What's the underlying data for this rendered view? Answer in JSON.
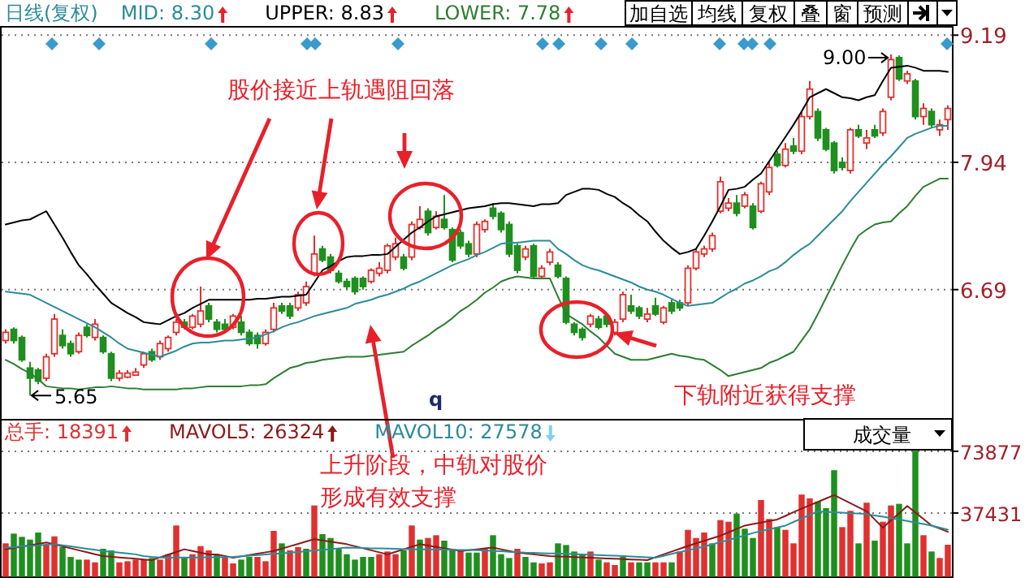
{
  "chart_data": [
    {
      "type": "candlestick",
      "title": "日线(复权)",
      "categories": [
        null,
        null,
        null,
        null,
        null,
        null,
        null,
        null,
        null,
        null,
        null,
        null,
        null,
        null,
        null,
        null,
        null,
        null,
        null,
        null,
        null,
        null,
        null,
        null,
        null,
        null,
        null,
        null,
        null,
        null,
        null,
        null,
        null,
        null,
        null,
        null,
        null,
        null,
        null,
        null,
        null,
        null,
        null,
        null,
        null,
        null,
        null,
        null,
        null,
        null,
        null,
        null,
        null,
        null,
        null,
        null,
        null,
        null,
        null,
        null,
        null,
        null,
        null,
        null,
        null,
        null,
        null,
        null,
        null,
        null,
        null,
        null,
        null,
        null,
        null,
        null,
        null,
        null,
        null,
        null,
        null,
        null,
        null,
        null,
        null,
        null,
        null,
        null,
        null,
        null,
        null,
        null,
        null,
        null,
        null,
        null,
        null,
        null,
        null,
        null,
        null,
        null,
        null,
        null,
        null,
        null,
        null,
        null,
        null,
        null,
        null,
        null,
        null,
        null,
        null,
        null,
        null
      ],
      "ohlc": [
        [
          6.19,
          6.3,
          6.16,
          6.27
        ],
        [
          6.3,
          6.32,
          6.16,
          6.19
        ],
        [
          6.22,
          6.24,
          5.98,
          6.0
        ],
        [
          5.92,
          5.98,
          5.65,
          5.82
        ],
        [
          5.9,
          5.92,
          5.76,
          5.79
        ],
        [
          5.82,
          6.06,
          5.79,
          6.03
        ],
        [
          6.06,
          6.45,
          6.03,
          6.4
        ],
        [
          6.24,
          6.3,
          6.11,
          6.14
        ],
        [
          6.16,
          6.19,
          6.03,
          6.06
        ],
        [
          6.08,
          6.27,
          6.06,
          6.24
        ],
        [
          6.32,
          6.35,
          6.22,
          6.24
        ],
        [
          6.22,
          6.4,
          6.19,
          6.35
        ],
        [
          6.22,
          6.24,
          6.06,
          6.08
        ],
        [
          6.06,
          6.08,
          5.79,
          5.82
        ],
        [
          5.82,
          5.9,
          5.79,
          5.87
        ],
        [
          5.83,
          5.9,
          5.82,
          5.87
        ],
        [
          5.85,
          5.92,
          5.84,
          5.88
        ],
        [
          5.95,
          6.08,
          5.92,
          6.06
        ],
        [
          6.08,
          6.11,
          5.98,
          6.0
        ],
        [
          6.03,
          6.19,
          6.0,
          6.16
        ],
        [
          6.11,
          6.24,
          6.08,
          6.22
        ],
        [
          6.27,
          6.4,
          6.24,
          6.37
        ],
        [
          6.37,
          6.4,
          6.3,
          6.32
        ],
        [
          6.32,
          6.45,
          6.3,
          6.43
        ],
        [
          6.35,
          6.72,
          6.32,
          6.48
        ],
        [
          6.53,
          6.56,
          6.37,
          6.4
        ],
        [
          6.37,
          6.4,
          6.27,
          6.3
        ],
        [
          6.35,
          6.4,
          6.27,
          6.3
        ],
        [
          6.32,
          6.45,
          6.3,
          6.43
        ],
        [
          6.37,
          6.43,
          6.24,
          6.27
        ],
        [
          6.27,
          6.3,
          6.14,
          6.16
        ],
        [
          6.24,
          6.27,
          6.11,
          6.16
        ],
        [
          6.16,
          6.3,
          6.14,
          6.27
        ],
        [
          6.3,
          6.56,
          6.27,
          6.51
        ],
        [
          6.53,
          6.56,
          6.45,
          6.48
        ],
        [
          6.53,
          6.56,
          6.4,
          6.43
        ],
        [
          6.51,
          6.67,
          6.48,
          6.64
        ],
        [
          6.56,
          6.77,
          6.53,
          6.72
        ],
        [
          6.85,
          7.22,
          6.82,
          7.04
        ],
        [
          7.09,
          7.12,
          6.96,
          6.98
        ],
        [
          7.01,
          7.04,
          6.85,
          6.88
        ],
        [
          6.85,
          6.88,
          6.75,
          6.77
        ],
        [
          6.77,
          6.8,
          6.69,
          6.72
        ],
        [
          6.8,
          6.82,
          6.64,
          6.67
        ],
        [
          6.8,
          6.82,
          6.69,
          6.72
        ],
        [
          6.77,
          6.9,
          6.75,
          6.88
        ],
        [
          6.85,
          6.96,
          6.82,
          6.9
        ],
        [
          6.88,
          7.14,
          6.85,
          7.12
        ],
        [
          7.01,
          7.2,
          6.98,
          7.14
        ],
        [
          7.01,
          7.04,
          6.88,
          6.9
        ],
        [
          7.01,
          7.36,
          6.98,
          7.33
        ],
        [
          7.3,
          7.51,
          7.28,
          7.38
        ],
        [
          7.46,
          7.49,
          7.22,
          7.25
        ],
        [
          7.3,
          7.46,
          7.28,
          7.41
        ],
        [
          7.38,
          7.62,
          7.28,
          7.3
        ],
        [
          7.28,
          7.3,
          6.96,
          6.98
        ],
        [
          7.25,
          7.28,
          7.09,
          7.12
        ],
        [
          7.14,
          7.17,
          7.01,
          7.04
        ],
        [
          7.04,
          7.36,
          7.01,
          7.33
        ],
        [
          7.28,
          7.38,
          7.25,
          7.36
        ],
        [
          7.49,
          7.54,
          7.38,
          7.41
        ],
        [
          7.44,
          7.46,
          7.25,
          7.28
        ],
        [
          7.33,
          7.36,
          7.01,
          7.04
        ],
        [
          7.12,
          7.14,
          6.85,
          6.88
        ],
        [
          7.01,
          7.12,
          6.98,
          7.09
        ],
        [
          7.12,
          7.14,
          6.8,
          6.82
        ],
        [
          6.82,
          6.93,
          6.8,
          6.9
        ],
        [
          6.96,
          7.09,
          6.93,
          7.06
        ],
        [
          6.93,
          6.96,
          6.8,
          6.82
        ],
        [
          6.8,
          6.82,
          6.35,
          6.37
        ],
        [
          6.35,
          6.37,
          6.24,
          6.27
        ],
        [
          6.3,
          6.32,
          6.19,
          6.22
        ],
        [
          6.35,
          6.45,
          6.32,
          6.43
        ],
        [
          6.4,
          6.43,
          6.3,
          6.32
        ],
        [
          6.43,
          6.45,
          6.32,
          6.35
        ],
        [
          6.27,
          6.4,
          6.24,
          6.37
        ],
        [
          6.4,
          6.67,
          6.37,
          6.64
        ],
        [
          6.53,
          6.64,
          6.45,
          6.48
        ],
        [
          6.51,
          6.53,
          6.4,
          6.43
        ],
        [
          6.4,
          6.51,
          6.37,
          6.45
        ],
        [
          6.53,
          6.61,
          6.43,
          6.45
        ],
        [
          6.37,
          6.53,
          6.35,
          6.51
        ],
        [
          6.56,
          6.59,
          6.45,
          6.48
        ],
        [
          6.56,
          6.59,
          6.48,
          6.51
        ],
        [
          6.56,
          6.93,
          6.53,
          6.9
        ],
        [
          6.9,
          7.09,
          6.88,
          7.06
        ],
        [
          7.04,
          7.12,
          7.01,
          7.09
        ],
        [
          7.09,
          7.25,
          7.06,
          7.22
        ],
        [
          7.46,
          7.8,
          7.44,
          7.75
        ],
        [
          7.49,
          7.59,
          7.46,
          7.54
        ],
        [
          7.54,
          7.62,
          7.41,
          7.44
        ],
        [
          7.51,
          7.65,
          7.49,
          7.62
        ],
        [
          7.51,
          7.54,
          7.28,
          7.3
        ],
        [
          7.46,
          7.75,
          7.44,
          7.73
        ],
        [
          7.65,
          7.94,
          7.62,
          7.89
        ],
        [
          8.02,
          8.05,
          7.89,
          7.91
        ],
        [
          7.91,
          8.13,
          7.89,
          8.07
        ],
        [
          8.1,
          8.18,
          8.02,
          8.05
        ],
        [
          8.05,
          8.44,
          8.02,
          8.39
        ],
        [
          8.39,
          8.74,
          8.36,
          8.66
        ],
        [
          8.44,
          8.47,
          8.15,
          8.18
        ],
        [
          8.26,
          8.28,
          8.05,
          8.07
        ],
        [
          8.13,
          8.15,
          7.83,
          7.86
        ],
        [
          7.94,
          7.99,
          7.86,
          7.89
        ],
        [
          7.86,
          8.28,
          7.83,
          8.26
        ],
        [
          8.26,
          8.31,
          8.18,
          8.2
        ],
        [
          8.13,
          8.26,
          8.07,
          8.18
        ],
        [
          8.26,
          8.31,
          8.18,
          8.2
        ],
        [
          8.23,
          8.47,
          8.2,
          8.44
        ],
        [
          8.58,
          9.0,
          8.55,
          8.95
        ],
        [
          8.97,
          8.99,
          8.74,
          8.76
        ],
        [
          8.74,
          8.84,
          8.71,
          8.81
        ],
        [
          8.74,
          8.76,
          8.36,
          8.39
        ],
        [
          8.39,
          8.52,
          8.31,
          8.47
        ],
        [
          8.44,
          8.47,
          8.28,
          8.31
        ],
        [
          8.26,
          8.36,
          8.2,
          8.31
        ],
        [
          8.36,
          8.5,
          8.26,
          8.47
        ]
      ],
      "series": [
        {
          "type": "line",
          "name": "MID: 8.30",
          "color": "#2b8c99",
          "values": [
            6.67,
            6.66,
            6.65,
            6.64,
            6.6,
            6.56,
            6.52,
            6.48,
            6.44,
            6.4,
            6.36,
            6.32,
            6.27,
            6.22,
            6.16,
            6.11,
            6.09,
            6.07,
            6.05,
            6.03,
            6.06,
            6.09,
            6.13,
            6.16,
            6.17,
            6.17,
            6.18,
            6.19,
            6.19,
            6.2,
            6.21,
            6.22,
            6.25,
            6.28,
            6.32,
            6.35,
            6.37,
            6.4,
            6.43,
            6.45,
            6.47,
            6.49,
            6.51,
            6.55,
            6.57,
            6.59,
            6.62,
            6.64,
            6.67,
            6.7,
            6.74,
            6.77,
            6.81,
            6.85,
            6.89,
            6.93,
            6.96,
            6.99,
            7.03,
            7.06,
            7.1,
            7.14,
            7.15,
            7.15,
            7.16,
            7.17,
            7.17,
            7.17,
            7.09,
            7.04,
            6.98,
            6.93,
            6.9,
            6.88,
            6.85,
            6.82,
            6.79,
            6.76,
            6.72,
            6.69,
            6.67,
            6.64,
            6.6,
            6.56,
            6.53,
            6.54,
            6.55,
            6.56,
            6.61,
            6.66,
            6.7,
            6.75,
            6.78,
            6.82,
            6.87,
            6.9,
            6.96,
            7.03,
            7.09,
            7.14,
            7.22,
            7.3,
            7.38,
            7.46,
            7.56,
            7.65,
            7.74,
            7.83,
            7.92,
            8.0,
            8.09,
            8.18,
            8.22,
            8.25,
            8.28,
            8.3,
            8.3
          ]
        },
        {
          "type": "line",
          "name": "UPPER: 8.83",
          "color": "#000000",
          "values": [
            7.33,
            7.35,
            7.37,
            7.38,
            7.42,
            7.46,
            7.33,
            7.2,
            7.06,
            6.93,
            6.84,
            6.74,
            6.65,
            6.56,
            6.51,
            6.46,
            6.42,
            6.37,
            6.36,
            6.35,
            6.39,
            6.43,
            6.46,
            6.51,
            6.55,
            6.59,
            6.59,
            6.59,
            6.59,
            6.59,
            6.59,
            6.6,
            6.6,
            6.61,
            6.62,
            6.62,
            6.63,
            6.64,
            6.76,
            6.88,
            6.92,
            6.97,
            7.01,
            7.02,
            7.02,
            7.03,
            7.03,
            7.04,
            7.11,
            7.18,
            7.25,
            7.3,
            7.36,
            7.41,
            7.43,
            7.45,
            7.47,
            7.49,
            7.5,
            7.51,
            7.53,
            7.54,
            7.54,
            7.53,
            7.52,
            7.51,
            7.53,
            7.53,
            7.54,
            7.62,
            7.65,
            7.68,
            7.68,
            7.67,
            7.63,
            7.6,
            7.54,
            7.49,
            7.42,
            7.36,
            7.26,
            7.17,
            7.1,
            7.04,
            7.06,
            7.09,
            7.22,
            7.36,
            7.51,
            7.67,
            7.68,
            7.7,
            7.77,
            7.83,
            7.95,
            8.07,
            8.19,
            8.31,
            8.44,
            8.58,
            8.62,
            8.66,
            8.62,
            8.58,
            8.57,
            8.55,
            8.58,
            8.6,
            8.74,
            8.87,
            8.88,
            8.89,
            8.87,
            8.84,
            8.84,
            8.84,
            8.83
          ]
        },
        {
          "type": "line",
          "name": "LOWER: 7.78",
          "color": "#2e7d32",
          "values": [
            6.0,
            5.96,
            5.91,
            5.87,
            5.81,
            5.74,
            5.73,
            5.72,
            5.72,
            5.71,
            5.72,
            5.73,
            5.73,
            5.74,
            5.73,
            5.72,
            5.72,
            5.71,
            5.71,
            5.71,
            5.71,
            5.71,
            5.72,
            5.72,
            5.73,
            5.74,
            5.74,
            5.74,
            5.74,
            5.74,
            5.75,
            5.75,
            5.76,
            5.82,
            5.87,
            5.92,
            5.94,
            5.97,
            5.98,
            6.0,
            6.01,
            6.02,
            6.03,
            6.03,
            6.03,
            6.04,
            6.05,
            6.06,
            6.07,
            6.08,
            6.14,
            6.19,
            6.24,
            6.3,
            6.35,
            6.41,
            6.48,
            6.53,
            6.59,
            6.66,
            6.71,
            6.77,
            6.8,
            6.82,
            6.81,
            6.8,
            6.8,
            6.8,
            6.62,
            6.45,
            6.4,
            6.35,
            6.28,
            6.22,
            6.14,
            6.06,
            6.03,
            6.0,
            6.0,
            6.0,
            6.02,
            6.04,
            6.06,
            6.04,
            6.03,
            6.01,
            6.0,
            5.95,
            5.9,
            5.84,
            5.86,
            5.88,
            5.9,
            5.92,
            5.97,
            6.0,
            6.04,
            6.08,
            6.19,
            6.3,
            6.45,
            6.61,
            6.77,
            6.93,
            7.08,
            7.22,
            7.28,
            7.33,
            7.35,
            7.36,
            7.44,
            7.51,
            7.61,
            7.7,
            7.74,
            7.78,
            7.78
          ]
        }
      ],
      "ylim": [
        5.42,
        9.28
      ],
      "yticks": [
        9.19,
        7.94,
        6.69
      ],
      "grid": "y",
      "legend": "top left",
      "annotations": [
        "9.00",
        "5.65",
        "股价接近上轨遇阻回落",
        "上升阶段，中轨对股价",
        "形成有效支撑",
        "下轨附近获得支撑",
        "q",
        "加自选",
        "均线",
        "复权",
        "叠",
        "窗",
        "预测"
      ]
    },
    {
      "type": "bar",
      "categories": [
        null,
        null,
        null,
        null,
        null,
        null,
        null,
        null,
        null,
        null,
        null,
        null,
        null,
        null,
        null,
        null,
        null,
        null,
        null,
        null,
        null,
        null,
        null,
        null,
        null,
        null,
        null,
        null,
        null,
        null,
        null,
        null,
        null,
        null,
        null,
        null,
        null,
        null,
        null,
        null,
        null,
        null,
        null,
        null,
        null,
        null,
        null,
        null,
        null,
        null,
        null,
        null,
        null,
        null,
        null,
        null,
        null,
        null,
        null,
        null,
        null,
        null,
        null,
        null,
        null,
        null,
        null,
        null,
        null,
        null,
        null,
        null,
        null,
        null,
        null,
        null,
        null,
        null,
        null,
        null,
        null,
        null,
        null,
        null,
        null,
        null,
        null,
        null,
        null,
        null,
        null,
        null,
        null,
        null,
        null,
        null,
        null,
        null,
        null,
        null,
        null,
        null,
        null,
        null,
        null,
        null,
        null,
        null,
        null,
        null,
        null,
        null,
        null,
        null,
        null,
        null,
        null
      ],
      "series": [
        {
          "name": "总手: 18391",
          "values": [
            19200,
            24960,
            23040,
            21440,
            25600,
            18240,
            23360,
            16960,
            11200,
            9600,
            9600,
            8000,
            16000,
            15040,
            8000,
            8640,
            9600,
            9600,
            10560,
            9600,
            12800,
            29760,
            11200,
            12800,
            17600,
            15040,
            12800,
            11200,
            7360,
            9600,
            11200,
            11200,
            8640,
            26560,
            19200,
            15040,
            16960,
            16000,
            41600,
            24640,
            22400,
            16000,
            12800,
            9600,
            11200,
            11200,
            12800,
            14400,
            12800,
            15040,
            29760,
            21440,
            22400,
            24000,
            20800,
            15040,
            15040,
            13760,
            13760,
            16000,
            24000,
            12800,
            10560,
            16000,
            11200,
            8000,
            7360,
            8000,
            19200,
            18240,
            14400,
            12800,
            14400,
            9600,
            8000,
            6400,
            11200,
            8000,
            8000,
            8000,
            8000,
            8000,
            8000,
            14400,
            27200,
            22400,
            25600,
            19200,
            32960,
            32000,
            36800,
            27840,
            22400,
            44800,
            33600,
            28800,
            27200,
            19200,
            48000,
            45760,
            43840,
            40000,
            62400,
            28800,
            38400,
            19200,
            43200,
            20800,
            32000,
            41600,
            42560,
            19200,
            73877,
            24000,
            14400,
            10560,
            18391
          ],
          "colors": [
            "#e0302f",
            "#1f8f1f",
            "#1f8f1f",
            "#1f8f1f",
            "#1f8f1f",
            "#e0302f",
            "#e0302f",
            "#1f8f1f",
            "#1f8f1f",
            "#1f8f1f",
            "#e0302f",
            "#e0302f",
            "#1f8f1f",
            "#1f8f1f",
            "#e0302f",
            "#e0302f",
            "#e0302f",
            "#e0302f",
            "#1f8f1f",
            "#e0302f",
            "#e0302f",
            "#e0302f",
            "#1f8f1f",
            "#e0302f",
            "#e0302f",
            "#e0302f",
            "#1f8f1f",
            "#e0302f",
            "#e0302f",
            "#1f8f1f",
            "#1f8f1f",
            "#e0302f",
            "#e0302f",
            "#e0302f",
            "#1f8f1f",
            "#e0302f",
            "#e0302f",
            "#1f8f1f",
            "#e0302f",
            "#1f8f1f",
            "#1f8f1f",
            "#1f8f1f",
            "#1f8f1f",
            "#1f8f1f",
            "#1f8f1f",
            "#1f8f1f",
            "#e0302f",
            "#e0302f",
            "#e0302f",
            "#1f8f1f",
            "#e0302f",
            "#1f8f1f",
            "#e0302f",
            "#e0302f",
            "#1f8f1f",
            "#1f8f1f",
            "#e0302f",
            "#1f8f1f",
            "#1f8f1f",
            "#e0302f",
            "#1f8f1f",
            "#1f8f1f",
            "#1f8f1f",
            "#e0302f",
            "#1f8f1f",
            "#1f8f1f",
            "#e0302f",
            "#e0302f",
            "#1f8f1f",
            "#1f8f1f",
            "#1f8f1f",
            "#1f8f1f",
            "#e0302f",
            "#1f8f1f",
            "#e0302f",
            "#e0302f",
            "#1f8f1f",
            "#e0302f",
            "#1f8f1f",
            "#1f8f1f",
            "#e0302f",
            "#e0302f",
            "#1f8f1f",
            "#e0302f",
            "#e0302f",
            "#e0302f",
            "#e0302f",
            "#1f8f1f",
            "#e0302f",
            "#e0302f",
            "#1f8f1f",
            "#1f8f1f",
            "#1f8f1f",
            "#e0302f",
            "#e0302f",
            "#1f8f1f",
            "#e0302f",
            "#e0302f",
            "#e0302f",
            "#e0302f",
            "#1f8f1f",
            "#1f8f1f",
            "#1f8f1f",
            "#e0302f",
            "#e0302f",
            "#1f8f1f",
            "#e0302f",
            "#1f8f1f",
            "#e0302f",
            "#e0302f",
            "#1f8f1f",
            "#1f8f1f",
            "#1f8f1f",
            "#e0302f",
            "#1f8f1f",
            "#e0302f",
            "#e0302f"
          ]
        },
        {
          "type": "line",
          "name": "MAVOL5: 26324",
          "color": "#8b1a1a",
          "values": [
            16000,
            16800,
            17600,
            18400,
            19200,
            20000,
            18900,
            17700,
            16600,
            15400,
            14300,
            13100,
            12000,
            11600,
            11200,
            10800,
            10400,
            10000,
            9600,
            11200,
            12800,
            14400,
            16000,
            15000,
            14000,
            13000,
            13000,
            12000,
            11000,
            11800,
            12600,
            13400,
            14200,
            15000,
            16400,
            17800,
            19200,
            20600,
            22000,
            21200,
            20500,
            19800,
            19000,
            17800,
            16600,
            15400,
            14200,
            13000,
            14500,
            16000,
            17500,
            19000,
            18200,
            17400,
            16600,
            15800,
            15000,
            15500,
            16000,
            16500,
            17000,
            16000,
            15000,
            14000,
            13500,
            13000,
            12500,
            12000,
            11800,
            11600,
            11400,
            11200,
            11000,
            10800,
            10600,
            10400,
            10200,
            10000,
            9800,
            9600,
            11300,
            13000,
            14700,
            16300,
            18000,
            19500,
            21000,
            22500,
            24000,
            26000,
            28000,
            30000,
            30900,
            31800,
            32700,
            33600,
            35700,
            37900,
            40000,
            42000,
            44000,
            46000,
            48000,
            45600,
            43200,
            40800,
            38400,
            33600,
            28800,
            33100,
            37300,
            41600,
            37700,
            33900,
            30000,
            28200,
            26324
          ]
        },
        {
          "type": "line",
          "name": "MAVOL10: 27578",
          "color": "#2b8c99",
          "values": [
            17000,
            17300,
            17700,
            18000,
            18300,
            18700,
            19000,
            18300,
            17700,
            17000,
            16300,
            15700,
            15000,
            14500,
            14000,
            13500,
            13000,
            12000,
            11500,
            11200,
            11000,
            11100,
            11100,
            11200,
            11200,
            11300,
            11300,
            11400,
            11500,
            11900,
            12200,
            12600,
            12900,
            13300,
            13600,
            14000,
            14400,
            14900,
            15300,
            15700,
            16100,
            16600,
            17000,
            16900,
            16800,
            16600,
            16500,
            16400,
            16300,
            16100,
            16000,
            15900,
            15900,
            15800,
            15800,
            15700,
            15600,
            15600,
            15500,
            15300,
            15000,
            14800,
            14500,
            14300,
            14000,
            13900,
            13700,
            13600,
            13500,
            13300,
            13200,
            13000,
            12800,
            12600,
            12400,
            12200,
            12000,
            11700,
            11500,
            11300,
            11000,
            12100,
            13300,
            14400,
            15400,
            16500,
            17600,
            18900,
            20200,
            21500,
            22900,
            24200,
            25600,
            26700,
            27800,
            28900,
            30000,
            32100,
            34200,
            36300,
            38400,
            38100,
            37900,
            37600,
            37300,
            37100,
            36800,
            36000,
            35200,
            34400,
            33600,
            32700,
            31800,
            30900,
            30000,
            28800,
            27578
          ]
        }
      ],
      "ylim": [
        0,
        93000
      ],
      "yticks": [
        73877,
        37431
      ],
      "grid": "y",
      "legend": "top left",
      "annotations": [
        "成交量"
      ]
    }
  ]
}
